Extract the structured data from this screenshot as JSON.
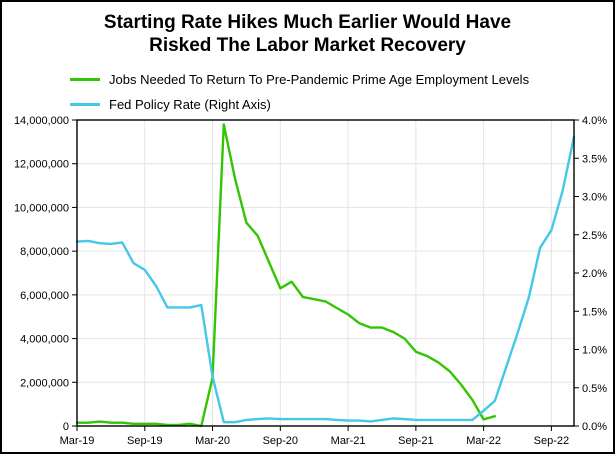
{
  "chart": {
    "title_line1": "Starting Rate Hikes Much Earlier Would Have",
    "title_line2": "Risked The Labor Market Recovery"
  },
  "legend": {
    "items": [
      {
        "label": "Jobs Needed To Return To Pre-Pandemic Prime Age Employment Levels",
        "color": "#33c502"
      },
      {
        "label": "Fed Policy Rate (Right Axis)",
        "color": "#44c8e8"
      }
    ]
  },
  "chart_data": {
    "type": "line",
    "title": "Starting Rate Hikes Much Earlier Would Have Risked The Labor Market Recovery",
    "grid": true,
    "legend_position": "top-left",
    "x": [
      "Mar-19",
      "Apr-19",
      "May-19",
      "Jun-19",
      "Jul-19",
      "Aug-19",
      "Sep-19",
      "Oct-19",
      "Nov-19",
      "Dec-19",
      "Jan-20",
      "Feb-20",
      "Mar-20",
      "Apr-20",
      "May-20",
      "Jun-20",
      "Jul-20",
      "Aug-20",
      "Sep-20",
      "Oct-20",
      "Nov-20",
      "Dec-20",
      "Jan-21",
      "Feb-21",
      "Mar-21",
      "Apr-21",
      "May-21",
      "Jun-21",
      "Jul-21",
      "Aug-21",
      "Sep-21",
      "Oct-21",
      "Nov-21",
      "Dec-21",
      "Jan-22",
      "Feb-22",
      "Mar-22",
      "Apr-22",
      "May-22",
      "Jun-22",
      "Jul-22",
      "Aug-22",
      "Sep-22",
      "Oct-22",
      "Nov-22"
    ],
    "x_tick_labels": [
      "Mar-19",
      "Sep-19",
      "Mar-20",
      "Sep-20",
      "Mar-21",
      "Sep-21",
      "Mar-22",
      "Sep-22"
    ],
    "x_tick_indices": [
      0,
      6,
      12,
      18,
      24,
      30,
      36,
      42
    ],
    "left_axis": {
      "min": 0,
      "max": 14000000,
      "tick_step": 2000000,
      "tick_labels": [
        "0",
        "2,000,000",
        "4,000,000",
        "6,000,000",
        "8,000,000",
        "10,000,000",
        "12,000,000",
        "14,000,000"
      ]
    },
    "right_axis": {
      "min": 0,
      "max": 4,
      "tick_step": 0.5,
      "tick_labels": [
        "0.0%",
        "0.5%",
        "1.0%",
        "1.5%",
        "2.0%",
        "2.5%",
        "3.0%",
        "3.5%",
        "4.0%"
      ]
    },
    "series": [
      {
        "name": "Jobs Needed To Return To Pre-Pandemic Prime Age Employment Levels",
        "axis": "left",
        "color": "#33c502",
        "values": [
          150000,
          150000,
          200000,
          150000,
          150000,
          100000,
          100000,
          100000,
          50000,
          50000,
          100000,
          0,
          2200000,
          13800000,
          11300000,
          9300000,
          8700000,
          7500000,
          6300000,
          6600000,
          5900000,
          5800000,
          5700000,
          5400000,
          5100000,
          4700000,
          4500000,
          4500000,
          4300000,
          4000000,
          3400000,
          3200000,
          2900000,
          2500000,
          1900000,
          1200000,
          300000,
          450000,
          null,
          null,
          null,
          null,
          null,
          null,
          null
        ]
      },
      {
        "name": "Fed Policy Rate (Right Axis)",
        "axis": "right",
        "color": "#44c8e8",
        "values": [
          2.41,
          2.42,
          2.39,
          2.38,
          2.4,
          2.13,
          2.04,
          1.83,
          1.55,
          1.55,
          1.55,
          1.58,
          0.65,
          0.05,
          0.05,
          0.08,
          0.09,
          0.1,
          0.09,
          0.09,
          0.09,
          0.09,
          0.09,
          0.08,
          0.07,
          0.07,
          0.06,
          0.08,
          0.1,
          0.09,
          0.08,
          0.08,
          0.08,
          0.08,
          0.08,
          0.08,
          0.2,
          0.33,
          0.77,
          1.21,
          1.68,
          2.33,
          2.56,
          3.08,
          3.78
        ]
      }
    ]
  }
}
